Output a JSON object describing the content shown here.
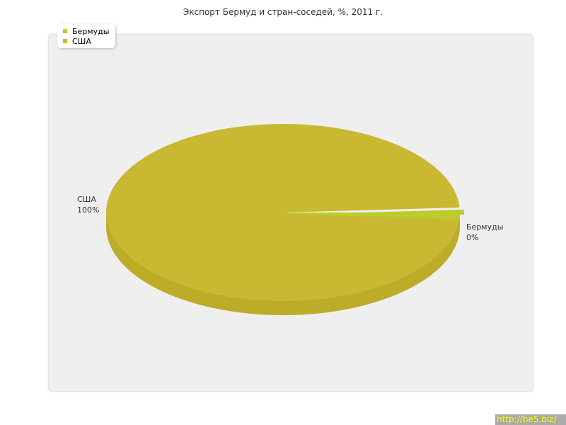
{
  "chart_data": {
    "type": "pie",
    "title": "Экспорт Бермуд и стран-соседей, %, 2011 г.",
    "categories": [
      "Бермуды",
      "США"
    ],
    "values": [
      0.3,
      99.7
    ],
    "data_labels": [
      "0%",
      "100%"
    ],
    "colors": [
      "#bccc2c",
      "#c8b832"
    ],
    "legend": "top-left",
    "style": "3d"
  },
  "watermark": "http://be5.biz/"
}
